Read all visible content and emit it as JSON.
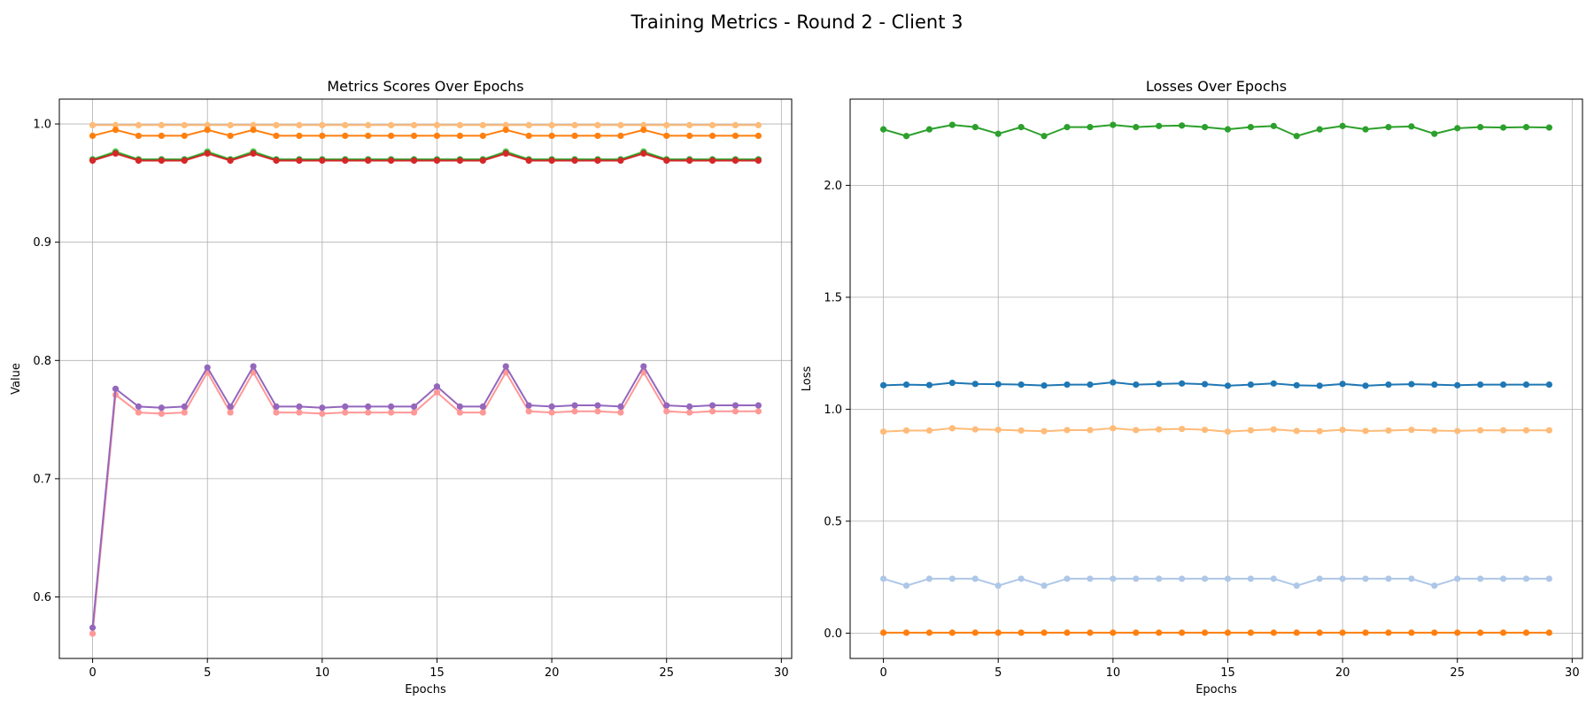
{
  "figure_title": "Training Metrics - Round 2 - Client 3",
  "chart_data": [
    {
      "type": "line",
      "title": "Metrics Scores Over Epochs",
      "xlabel": "Epochs",
      "ylabel": "Value",
      "xlim": [
        -1.45,
        30.45
      ],
      "ylim": [
        0.548,
        1.021
      ],
      "xticks": [
        0,
        5,
        10,
        15,
        20,
        25,
        30
      ],
      "yticks": [
        0.6,
        0.7,
        0.8,
        0.9,
        1.0
      ],
      "ytick_labels": [
        "0.6",
        "0.7",
        "0.8",
        "0.9",
        "1.0"
      ],
      "grid": true,
      "legend": "none",
      "x": [
        0,
        1,
        2,
        3,
        4,
        5,
        6,
        7,
        8,
        9,
        10,
        11,
        12,
        13,
        14,
        15,
        16,
        17,
        18,
        19,
        20,
        21,
        22,
        23,
        24,
        25,
        26,
        27,
        28,
        29
      ],
      "series": [
        {
          "color": "#ffbb78",
          "values": [
            0.999,
            0.999,
            0.999,
            0.999,
            0.999,
            0.999,
            0.999,
            0.999,
            0.999,
            0.999,
            0.999,
            0.999,
            0.999,
            0.999,
            0.999,
            0.999,
            0.999,
            0.999,
            0.999,
            0.999,
            0.999,
            0.999,
            0.999,
            0.999,
            0.999,
            0.999,
            0.999,
            0.999,
            0.999,
            0.999
          ]
        },
        {
          "color": "#ff7f0e",
          "values": [
            0.99,
            0.995,
            0.99,
            0.99,
            0.99,
            0.995,
            0.99,
            0.995,
            0.99,
            0.99,
            0.99,
            0.99,
            0.99,
            0.99,
            0.99,
            0.99,
            0.99,
            0.99,
            0.995,
            0.99,
            0.99,
            0.99,
            0.99,
            0.99,
            0.995,
            0.99,
            0.99,
            0.99,
            0.99,
            0.99
          ]
        },
        {
          "color": "#98df8a",
          "values": [
            0.97,
            0.977,
            0.97,
            0.97,
            0.97,
            0.977,
            0.97,
            0.977,
            0.97,
            0.97,
            0.97,
            0.97,
            0.97,
            0.97,
            0.97,
            0.97,
            0.97,
            0.97,
            0.977,
            0.97,
            0.97,
            0.97,
            0.97,
            0.97,
            0.977,
            0.97,
            0.97,
            0.97,
            0.97,
            0.97
          ]
        },
        {
          "color": "#2ca02c",
          "values": [
            0.97,
            0.976,
            0.97,
            0.97,
            0.97,
            0.976,
            0.97,
            0.976,
            0.97,
            0.97,
            0.97,
            0.97,
            0.97,
            0.97,
            0.97,
            0.97,
            0.97,
            0.97,
            0.976,
            0.97,
            0.97,
            0.97,
            0.97,
            0.97,
            0.976,
            0.97,
            0.97,
            0.97,
            0.97,
            0.97
          ]
        },
        {
          "color": "#d62728",
          "values": [
            0.969,
            0.975,
            0.969,
            0.969,
            0.969,
            0.975,
            0.969,
            0.975,
            0.969,
            0.969,
            0.969,
            0.969,
            0.969,
            0.969,
            0.969,
            0.969,
            0.969,
            0.969,
            0.975,
            0.969,
            0.969,
            0.969,
            0.969,
            0.969,
            0.975,
            0.969,
            0.969,
            0.969,
            0.969,
            0.969
          ]
        },
        {
          "color": "#ff9896",
          "values": [
            0.569,
            0.771,
            0.756,
            0.755,
            0.756,
            0.79,
            0.756,
            0.79,
            0.756,
            0.756,
            0.755,
            0.756,
            0.756,
            0.756,
            0.756,
            0.773,
            0.756,
            0.756,
            0.79,
            0.757,
            0.756,
            0.757,
            0.757,
            0.756,
            0.79,
            0.757,
            0.756,
            0.757,
            0.757,
            0.757
          ]
        },
        {
          "color": "#9467bd",
          "values": [
            0.574,
            0.776,
            0.761,
            0.76,
            0.761,
            0.794,
            0.761,
            0.795,
            0.761,
            0.761,
            0.76,
            0.761,
            0.761,
            0.761,
            0.761,
            0.778,
            0.761,
            0.761,
            0.795,
            0.762,
            0.761,
            0.762,
            0.762,
            0.761,
            0.795,
            0.762,
            0.761,
            0.762,
            0.762,
            0.762
          ]
        }
      ]
    },
    {
      "type": "line",
      "title": "Losses Over Epochs",
      "xlabel": "Epochs",
      "ylabel": "Loss",
      "xlim": [
        -1.45,
        30.45
      ],
      "ylim": [
        -0.113,
        2.385
      ],
      "xticks": [
        0,
        5,
        10,
        15,
        20,
        25,
        30
      ],
      "yticks": [
        0.0,
        0.5,
        1.0,
        1.5,
        2.0
      ],
      "ytick_labels": [
        "0.0",
        "0.5",
        "1.0",
        "1.5",
        "2.0"
      ],
      "grid": true,
      "legend": "none",
      "x": [
        0,
        1,
        2,
        3,
        4,
        5,
        6,
        7,
        8,
        9,
        10,
        11,
        12,
        13,
        14,
        15,
        16,
        17,
        18,
        19,
        20,
        21,
        22,
        23,
        24,
        25,
        26,
        27,
        28,
        29
      ],
      "series": [
        {
          "color": "#2ca02c",
          "values": [
            2.25,
            2.22,
            2.25,
            2.27,
            2.26,
            2.23,
            2.26,
            2.22,
            2.26,
            2.26,
            2.27,
            2.26,
            2.265,
            2.267,
            2.26,
            2.25,
            2.26,
            2.265,
            2.22,
            2.25,
            2.265,
            2.25,
            2.26,
            2.263,
            2.23,
            2.255,
            2.26,
            2.258,
            2.26,
            2.258
          ]
        },
        {
          "color": "#1f77b4",
          "values": [
            1.107,
            1.11,
            1.108,
            1.118,
            1.113,
            1.112,
            1.11,
            1.106,
            1.11,
            1.11,
            1.12,
            1.11,
            1.113,
            1.115,
            1.112,
            1.105,
            1.11,
            1.115,
            1.107,
            1.105,
            1.113,
            1.105,
            1.11,
            1.112,
            1.11,
            1.107,
            1.11,
            1.11,
            1.11,
            1.11
          ]
        },
        {
          "color": "#ffbb78",
          "values": [
            0.9,
            0.905,
            0.905,
            0.915,
            0.91,
            0.908,
            0.905,
            0.902,
            0.907,
            0.907,
            0.915,
            0.907,
            0.91,
            0.912,
            0.908,
            0.9,
            0.906,
            0.91,
            0.903,
            0.902,
            0.908,
            0.903,
            0.905,
            0.908,
            0.905,
            0.903,
            0.906,
            0.906,
            0.906,
            0.906
          ]
        },
        {
          "color": "#aec7e8",
          "values": [
            0.243,
            0.212,
            0.243,
            0.243,
            0.243,
            0.212,
            0.243,
            0.212,
            0.243,
            0.243,
            0.243,
            0.243,
            0.243,
            0.243,
            0.243,
            0.243,
            0.243,
            0.243,
            0.212,
            0.243,
            0.243,
            0.243,
            0.243,
            0.243,
            0.212,
            0.243,
            0.243,
            0.243,
            0.243,
            0.243
          ]
        },
        {
          "color": "#ff7f0e",
          "values": [
            0.002,
            0.002,
            0.002,
            0.002,
            0.002,
            0.002,
            0.002,
            0.002,
            0.002,
            0.002,
            0.002,
            0.002,
            0.002,
            0.002,
            0.002,
            0.002,
            0.002,
            0.002,
            0.002,
            0.002,
            0.002,
            0.002,
            0.002,
            0.002,
            0.002,
            0.002,
            0.002,
            0.002,
            0.002,
            0.002
          ]
        }
      ]
    }
  ]
}
